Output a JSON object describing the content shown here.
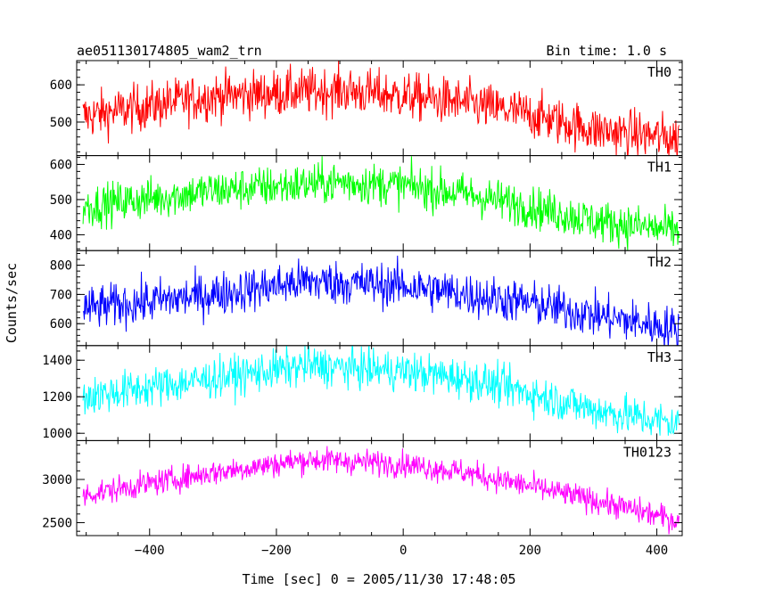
{
  "chart_data": {
    "type": "line",
    "title_left": "ae051130174805_wam2_trn",
    "title_right": "Bin time: 1.0 s",
    "xlabel": "Time [sec] 0 = 2005/11/30 17:48:05",
    "ylabel": "Counts/sec",
    "xlim": [
      -515,
      440
    ],
    "x_ticks": [
      -400,
      -200,
      0,
      200,
      400
    ],
    "x_range": [
      -505,
      435
    ],
    "grid": false,
    "series": [
      {
        "name": "TH0",
        "color": "#ff0000",
        "ylim": [
          410,
          665
        ],
        "y_ticks": [
          500,
          600
        ],
        "trend": [
          [
            -505,
            515
          ],
          [
            -300,
            570
          ],
          [
            -100,
            585
          ],
          [
            0,
            570
          ],
          [
            100,
            550
          ],
          [
            200,
            520
          ],
          [
            300,
            480
          ],
          [
            435,
            455
          ]
        ],
        "noise": 32
      },
      {
        "name": "TH1",
        "color": "#00ff00",
        "ylim": [
          355,
          625
        ],
        "y_ticks": [
          400,
          500,
          600
        ],
        "trend": [
          [
            -505,
            480
          ],
          [
            -300,
            525
          ],
          [
            -100,
            550
          ],
          [
            0,
            540
          ],
          [
            100,
            515
          ],
          [
            200,
            480
          ],
          [
            300,
            440
          ],
          [
            435,
            410
          ]
        ],
        "noise": 30
      },
      {
        "name": "TH2",
        "color": "#0000ff",
        "ylim": [
          525,
          850
        ],
        "y_ticks": [
          600,
          700,
          800
        ],
        "trend": [
          [
            -505,
            650
          ],
          [
            -300,
            700
          ],
          [
            -150,
            745
          ],
          [
            0,
            730
          ],
          [
            100,
            700
          ],
          [
            200,
            670
          ],
          [
            300,
            630
          ],
          [
            435,
            580
          ]
        ],
        "noise": 38
      },
      {
        "name": "TH3",
        "color": "#00ffff",
        "ylim": [
          960,
          1480
        ],
        "y_ticks": [
          1000,
          1200,
          1400
        ],
        "trend": [
          [
            -505,
            1200
          ],
          [
            -300,
            1300
          ],
          [
            -150,
            1370
          ],
          [
            0,
            1340
          ],
          [
            100,
            1300
          ],
          [
            200,
            1220
          ],
          [
            300,
            1130
          ],
          [
            435,
            1050
          ]
        ],
        "noise": 55
      },
      {
        "name": "TH0123",
        "color": "#ff00ff",
        "ylim": [
          2350,
          3450
        ],
        "y_ticks": [
          2500,
          3000
        ],
        "trend": [
          [
            -505,
            2820
          ],
          [
            -300,
            3080
          ],
          [
            -150,
            3230
          ],
          [
            0,
            3180
          ],
          [
            100,
            3080
          ],
          [
            200,
            2920
          ],
          [
            300,
            2760
          ],
          [
            435,
            2520
          ]
        ],
        "noise": 75
      }
    ]
  }
}
